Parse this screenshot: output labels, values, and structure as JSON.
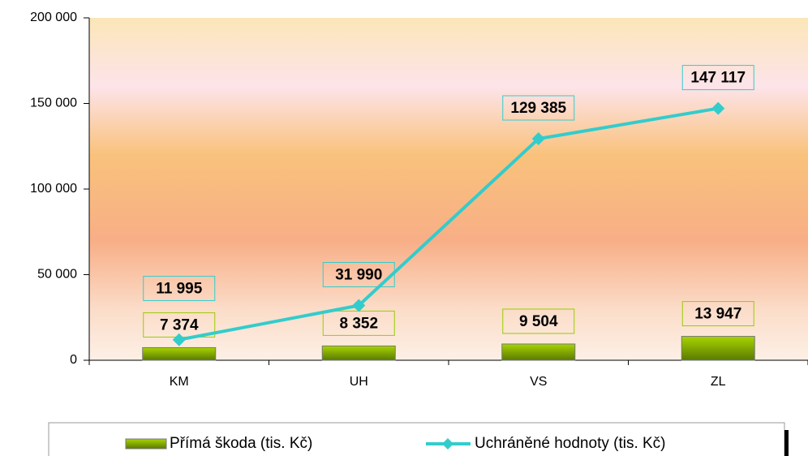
{
  "chart_data": {
    "type": "combo",
    "categories": [
      "KM",
      "UH",
      "VS",
      "ZL"
    ],
    "series": [
      {
        "name": "Přímá škoda (tis. Kč)",
        "type": "bar",
        "color": "#88b400",
        "values": [
          7374,
          8352,
          9504,
          13947
        ],
        "value_labels": [
          "7 374",
          "8 352",
          "9 504",
          "13 947"
        ]
      },
      {
        "name": "Uchráněné hodnoty (tis. Kč)",
        "type": "line",
        "color": "#33cccc",
        "values": [
          11995,
          31990,
          129385,
          147117
        ],
        "value_labels": [
          "11 995",
          "31 990",
          "129 385",
          "147 117"
        ]
      }
    ],
    "ylim": [
      0,
      200000
    ],
    "yticks": [
      0,
      {
        "value": 50000,
        "label": "50 000"
      },
      {
        "value": 100000,
        "label": "100 000"
      },
      {
        "value": 150000,
        "label": "150 000"
      },
      {
        "value": 200000,
        "label": "200 000"
      }
    ]
  }
}
